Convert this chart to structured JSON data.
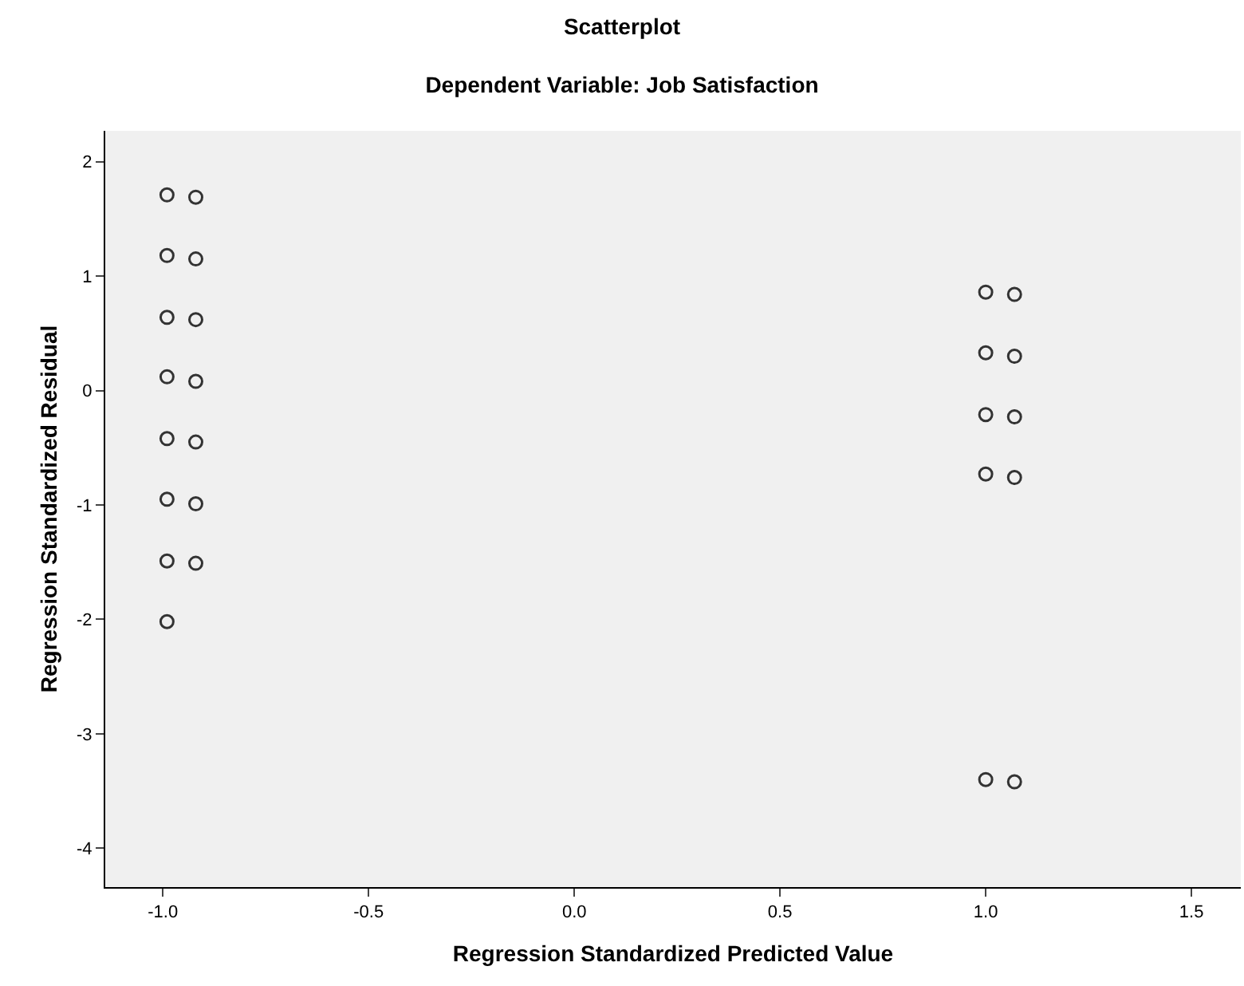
{
  "chart_data": {
    "type": "scatter",
    "title": "Scatterplot",
    "subtitle": "Dependent Variable: Job Satisfaction",
    "xlabel": "Regression Standardized Predicted Value",
    "ylabel": "Regression Standardized Residual",
    "x": [
      -0.99,
      -0.99,
      -0.99,
      -0.99,
      -0.99,
      -0.99,
      -0.99,
      -0.99,
      -0.92,
      -0.92,
      -0.92,
      -0.92,
      -0.92,
      -0.92,
      -0.92,
      1.0,
      1.0,
      1.0,
      1.0,
      1.0,
      1.07,
      1.07,
      1.07,
      1.07,
      1.07
    ],
    "values": [
      1.71,
      1.18,
      0.64,
      0.12,
      -0.42,
      -0.95,
      -1.49,
      -2.02,
      1.69,
      1.15,
      0.62,
      0.08,
      -0.45,
      -0.99,
      -1.51,
      0.86,
      0.33,
      -0.21,
      -0.73,
      -3.4,
      0.84,
      0.3,
      -0.23,
      -0.76,
      -3.42
    ],
    "color": "#333333",
    "marker": "circle",
    "xlim": [
      -1.14,
      1.62
    ],
    "ylim": [
      -4.34,
      2.27
    ],
    "xticks": [
      {
        "value": -1.0,
        "label": "-1.0"
      },
      {
        "value": -0.5,
        "label": "-0.5"
      },
      {
        "value": 0,
        "label": "0.0"
      },
      {
        "value": 0.5,
        "label": "0.5"
      },
      {
        "value": 1.0,
        "label": "1.0"
      },
      {
        "value": 1.5,
        "label": "1.5"
      }
    ],
    "yticks": [
      -4,
      -3,
      -2,
      -1,
      0,
      1,
      2
    ],
    "grid": false,
    "legend": false
  }
}
